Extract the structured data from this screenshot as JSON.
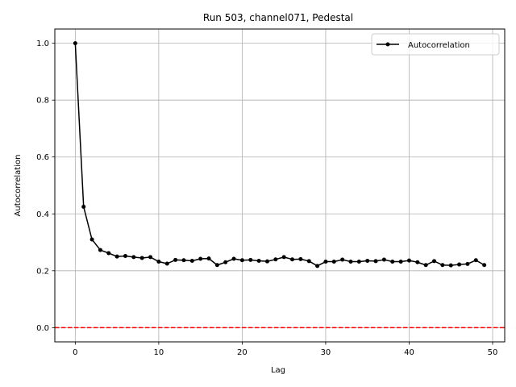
{
  "chart_data": {
    "type": "line",
    "title": "Run 503, channel071, Pedestal",
    "xlabel": "Lag",
    "ylabel": "Autocorrelation",
    "xlim": [
      -2.45,
      51.45
    ],
    "ylim": [
      -0.05,
      1.05
    ],
    "xticks": [
      0,
      10,
      20,
      30,
      40,
      50
    ],
    "yticks": [
      0.0,
      0.2,
      0.4,
      0.6,
      0.8,
      1.0
    ],
    "xtick_labels": [
      "0",
      "10",
      "20",
      "30",
      "40",
      "50"
    ],
    "ytick_labels": [
      "0.0",
      "0.2",
      "0.4",
      "0.6",
      "0.8",
      "1.0"
    ],
    "grid": true,
    "legend_position": "top-right",
    "series": [
      {
        "name": "Autocorrelation",
        "color": "#000000",
        "marker": "circle",
        "x": [
          0,
          1,
          2,
          3,
          4,
          5,
          6,
          7,
          8,
          9,
          10,
          11,
          12,
          13,
          14,
          15,
          16,
          17,
          18,
          19,
          20,
          21,
          22,
          23,
          24,
          25,
          26,
          27,
          28,
          29,
          30,
          31,
          32,
          33,
          34,
          35,
          36,
          37,
          38,
          39,
          40,
          41,
          42,
          43,
          44,
          45,
          46,
          47,
          48,
          49
        ],
        "y": [
          1.0,
          0.425,
          0.31,
          0.273,
          0.262,
          0.25,
          0.252,
          0.248,
          0.245,
          0.248,
          0.232,
          0.225,
          0.238,
          0.237,
          0.235,
          0.242,
          0.243,
          0.22,
          0.23,
          0.242,
          0.237,
          0.238,
          0.235,
          0.233,
          0.24,
          0.248,
          0.24,
          0.241,
          0.234,
          0.217,
          0.232,
          0.232,
          0.239,
          0.232,
          0.232,
          0.235,
          0.234,
          0.239,
          0.232,
          0.232,
          0.236,
          0.23,
          0.22,
          0.234,
          0.22,
          0.219,
          0.222,
          0.224,
          0.237,
          0.22
        ]
      }
    ],
    "reference_line": {
      "y": 0.0,
      "color": "#ff0000",
      "style": "dashed"
    }
  }
}
